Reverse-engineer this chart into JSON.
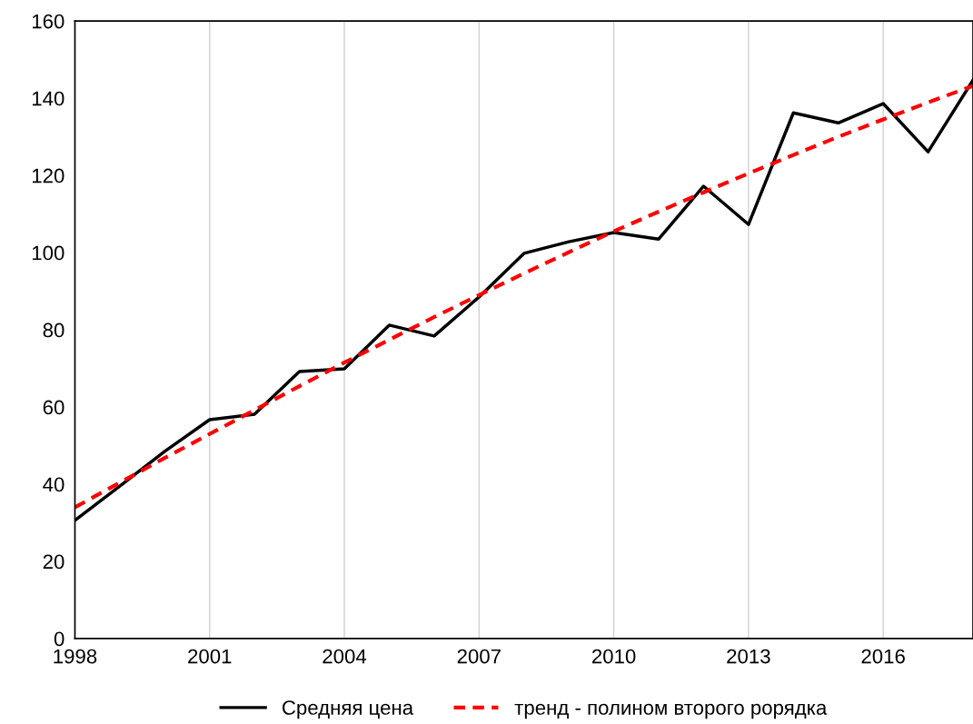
{
  "chart_data": {
    "type": "line",
    "x": [
      1998,
      1999,
      2000,
      2001,
      2002,
      2003,
      2004,
      2005,
      2006,
      2007,
      2008,
      2009,
      2010,
      2011,
      2012,
      2013,
      2014,
      2015,
      2016,
      2017,
      2018
    ],
    "series": [
      {
        "name": "Средняя цена",
        "color": "#000000",
        "line_style": "solid",
        "values": [
          30.6,
          39.5,
          48.5,
          56.7,
          58.1,
          69.2,
          69.9,
          81.2,
          78.4,
          88.5,
          99.8,
          102.8,
          105.2,
          103.5,
          117.2,
          107.3,
          136.2,
          133.6,
          138.6,
          126.1,
          144.7
        ]
      },
      {
        "name": "тренд - полином второго рорядка",
        "color": "#ff0000",
        "line_style": "dashed",
        "values": [
          34,
          40.4,
          46.8,
          53,
          59.2,
          65.4,
          71.5,
          77.4,
          83.3,
          89,
          94.6,
          100.1,
          105.5,
          110.6,
          115.6,
          120.5,
          125.3,
          130,
          134.5,
          138.9,
          143.2
        ]
      }
    ],
    "xlim": [
      1998,
      2018
    ],
    "xticks": [
      1998,
      2001,
      2004,
      2007,
      2010,
      2013,
      2016
    ],
    "ylim": [
      0,
      160
    ],
    "yticks": [
      0,
      20,
      40,
      60,
      80,
      100,
      120,
      140,
      160
    ],
    "grid": "x",
    "legend": "bottom",
    "marker": "none"
  }
}
